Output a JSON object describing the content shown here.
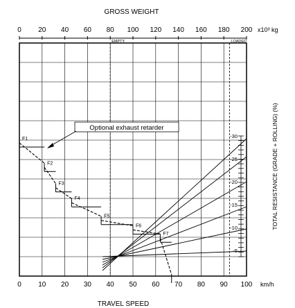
{
  "chart_data": {
    "type": "line",
    "title": "GROSS WEIGHT",
    "xlabel": "TRAVEL SPEED",
    "ylabel": "TOTAL RESISTANCE (GRADE + ROLLING) (%)",
    "top_axis": {
      "ticks": [
        "0",
        "20",
        "40",
        "60",
        "80",
        "100",
        "120",
        "140",
        "160",
        "180",
        "200"
      ],
      "unit": "x10³ kg",
      "range": [
        0,
        200
      ],
      "markers": [
        {
          "label": "EMPTY",
          "value": 80
        },
        {
          "label": "LOADED",
          "value": 185
        }
      ]
    },
    "bottom_axis": {
      "ticks": [
        "0",
        "10",
        "20",
        "30",
        "40",
        "50",
        "60",
        "70",
        "80",
        "90",
        "100"
      ],
      "unit": "km/h",
      "range": [
        0,
        100
      ]
    },
    "resistance_scale": {
      "ticks": [
        "30",
        "25",
        "20",
        "15",
        "10",
        "5"
      ]
    },
    "resistance_lines": [
      30,
      25,
      20,
      15,
      10,
      5
    ],
    "gears": [
      {
        "name": "F1",
        "from": 0,
        "to": 11,
        "rimpull_max": 1.0,
        "rimpull_min": 0.82
      },
      {
        "name": "F2",
        "from": 11,
        "to": 16,
        "rimpull_max": 0.82,
        "rimpull_min": 0.67
      },
      {
        "name": "F3",
        "from": 16,
        "to": 23,
        "rimpull_max": 0.67,
        "rimpull_min": 0.56
      },
      {
        "name": "F4",
        "from": 23,
        "to": 36,
        "rimpull_max": 0.56,
        "rimpull_min": 0.43
      },
      {
        "name": "F5",
        "from": 36,
        "to": 50,
        "rimpull_max": 0.43,
        "rimpull_min": 0.36
      },
      {
        "name": "F6",
        "from": 50,
        "to": 62,
        "rimpull_max": 0.36,
        "rimpull_min": 0.3
      },
      {
        "name": "F7",
        "from": 62,
        "to": 67,
        "rimpull_max": 0.3,
        "rimpull_min": 0.0
      }
    ],
    "annotation": {
      "text": "Optional exhaust retarder"
    },
    "grid": true
  }
}
